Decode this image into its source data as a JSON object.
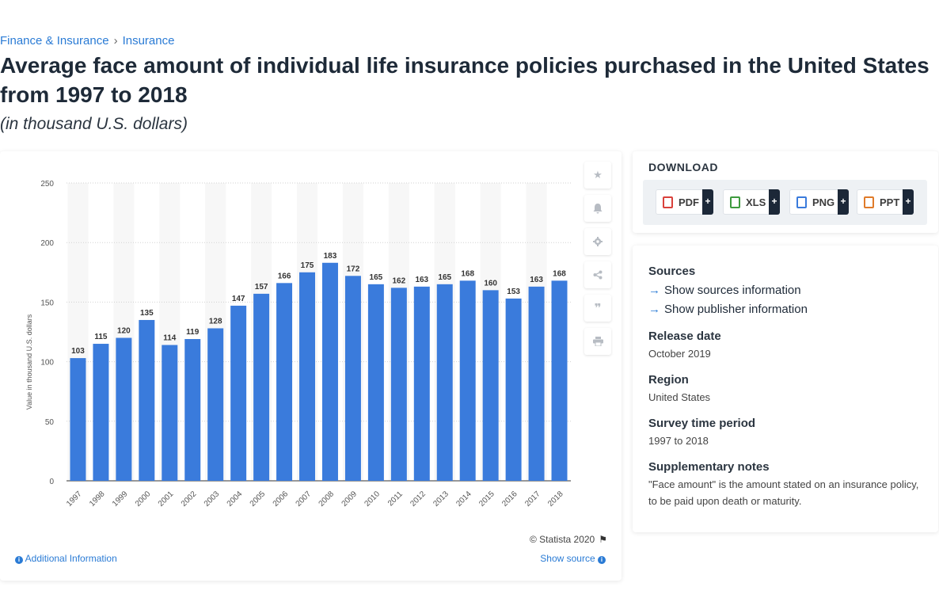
{
  "breadcrumb": {
    "items": [
      "Finance & Insurance",
      "Insurance"
    ],
    "separator": "›"
  },
  "title": "Average face amount of individual life insurance policies purchased in the United States from 1997 to 2018",
  "subtitle": "(in thousand U.S. dollars)",
  "chart_data": {
    "type": "bar",
    "categories": [
      "1997",
      "1998",
      "1999",
      "2000",
      "2001",
      "2002",
      "2003",
      "2004",
      "2005",
      "2006",
      "2007",
      "2008",
      "2009",
      "2010",
      "2011",
      "2012",
      "2013",
      "2014",
      "2015",
      "2016",
      "2017",
      "2018"
    ],
    "values": [
      103,
      115,
      120,
      135,
      114,
      119,
      128,
      147,
      157,
      166,
      175,
      183,
      172,
      165,
      162,
      163,
      165,
      168,
      160,
      153,
      163,
      168
    ],
    "ylabel": "Value in thousand U.S. dollars",
    "xlabel": "",
    "ylim": [
      0,
      250
    ],
    "yticks": [
      0,
      50,
      100,
      150,
      200,
      250
    ],
    "grid": true,
    "bar_color": "#3a7bdc",
    "label_color": "#333333"
  },
  "chart_footer": {
    "copyright": "© Statista 2020",
    "additional_info": "Additional Information",
    "show_source": "Show source"
  },
  "tools": [
    "star-icon",
    "bell-icon",
    "gear-icon",
    "share-icon",
    "quote-icon",
    "print-icon"
  ],
  "download": {
    "heading": "DOWNLOAD",
    "buttons": [
      {
        "label": "PDF",
        "icon": "pdf-file-icon",
        "color": "#d9413b"
      },
      {
        "label": "XLS",
        "icon": "xls-file-icon",
        "color": "#3e9b3e"
      },
      {
        "label": "PNG",
        "icon": "png-file-icon",
        "color": "#3a7bdc"
      },
      {
        "label": "PPT",
        "icon": "ppt-file-icon",
        "color": "#e07b2a"
      }
    ],
    "plus": "+"
  },
  "info": {
    "sources_label": "Sources",
    "show_sources": "Show sources information",
    "show_publisher": "Show publisher information",
    "release_label": "Release date",
    "release_value": "October 2019",
    "region_label": "Region",
    "region_value": "United States",
    "survey_label": "Survey time period",
    "survey_value": "1997 to 2018",
    "notes_label": "Supplementary notes",
    "notes_value": "\"Face amount\" is the amount stated on an insurance policy, to be paid upon death or maturity."
  },
  "colors": {
    "accent": "#2a7bd5",
    "dark": "#1c2838"
  }
}
